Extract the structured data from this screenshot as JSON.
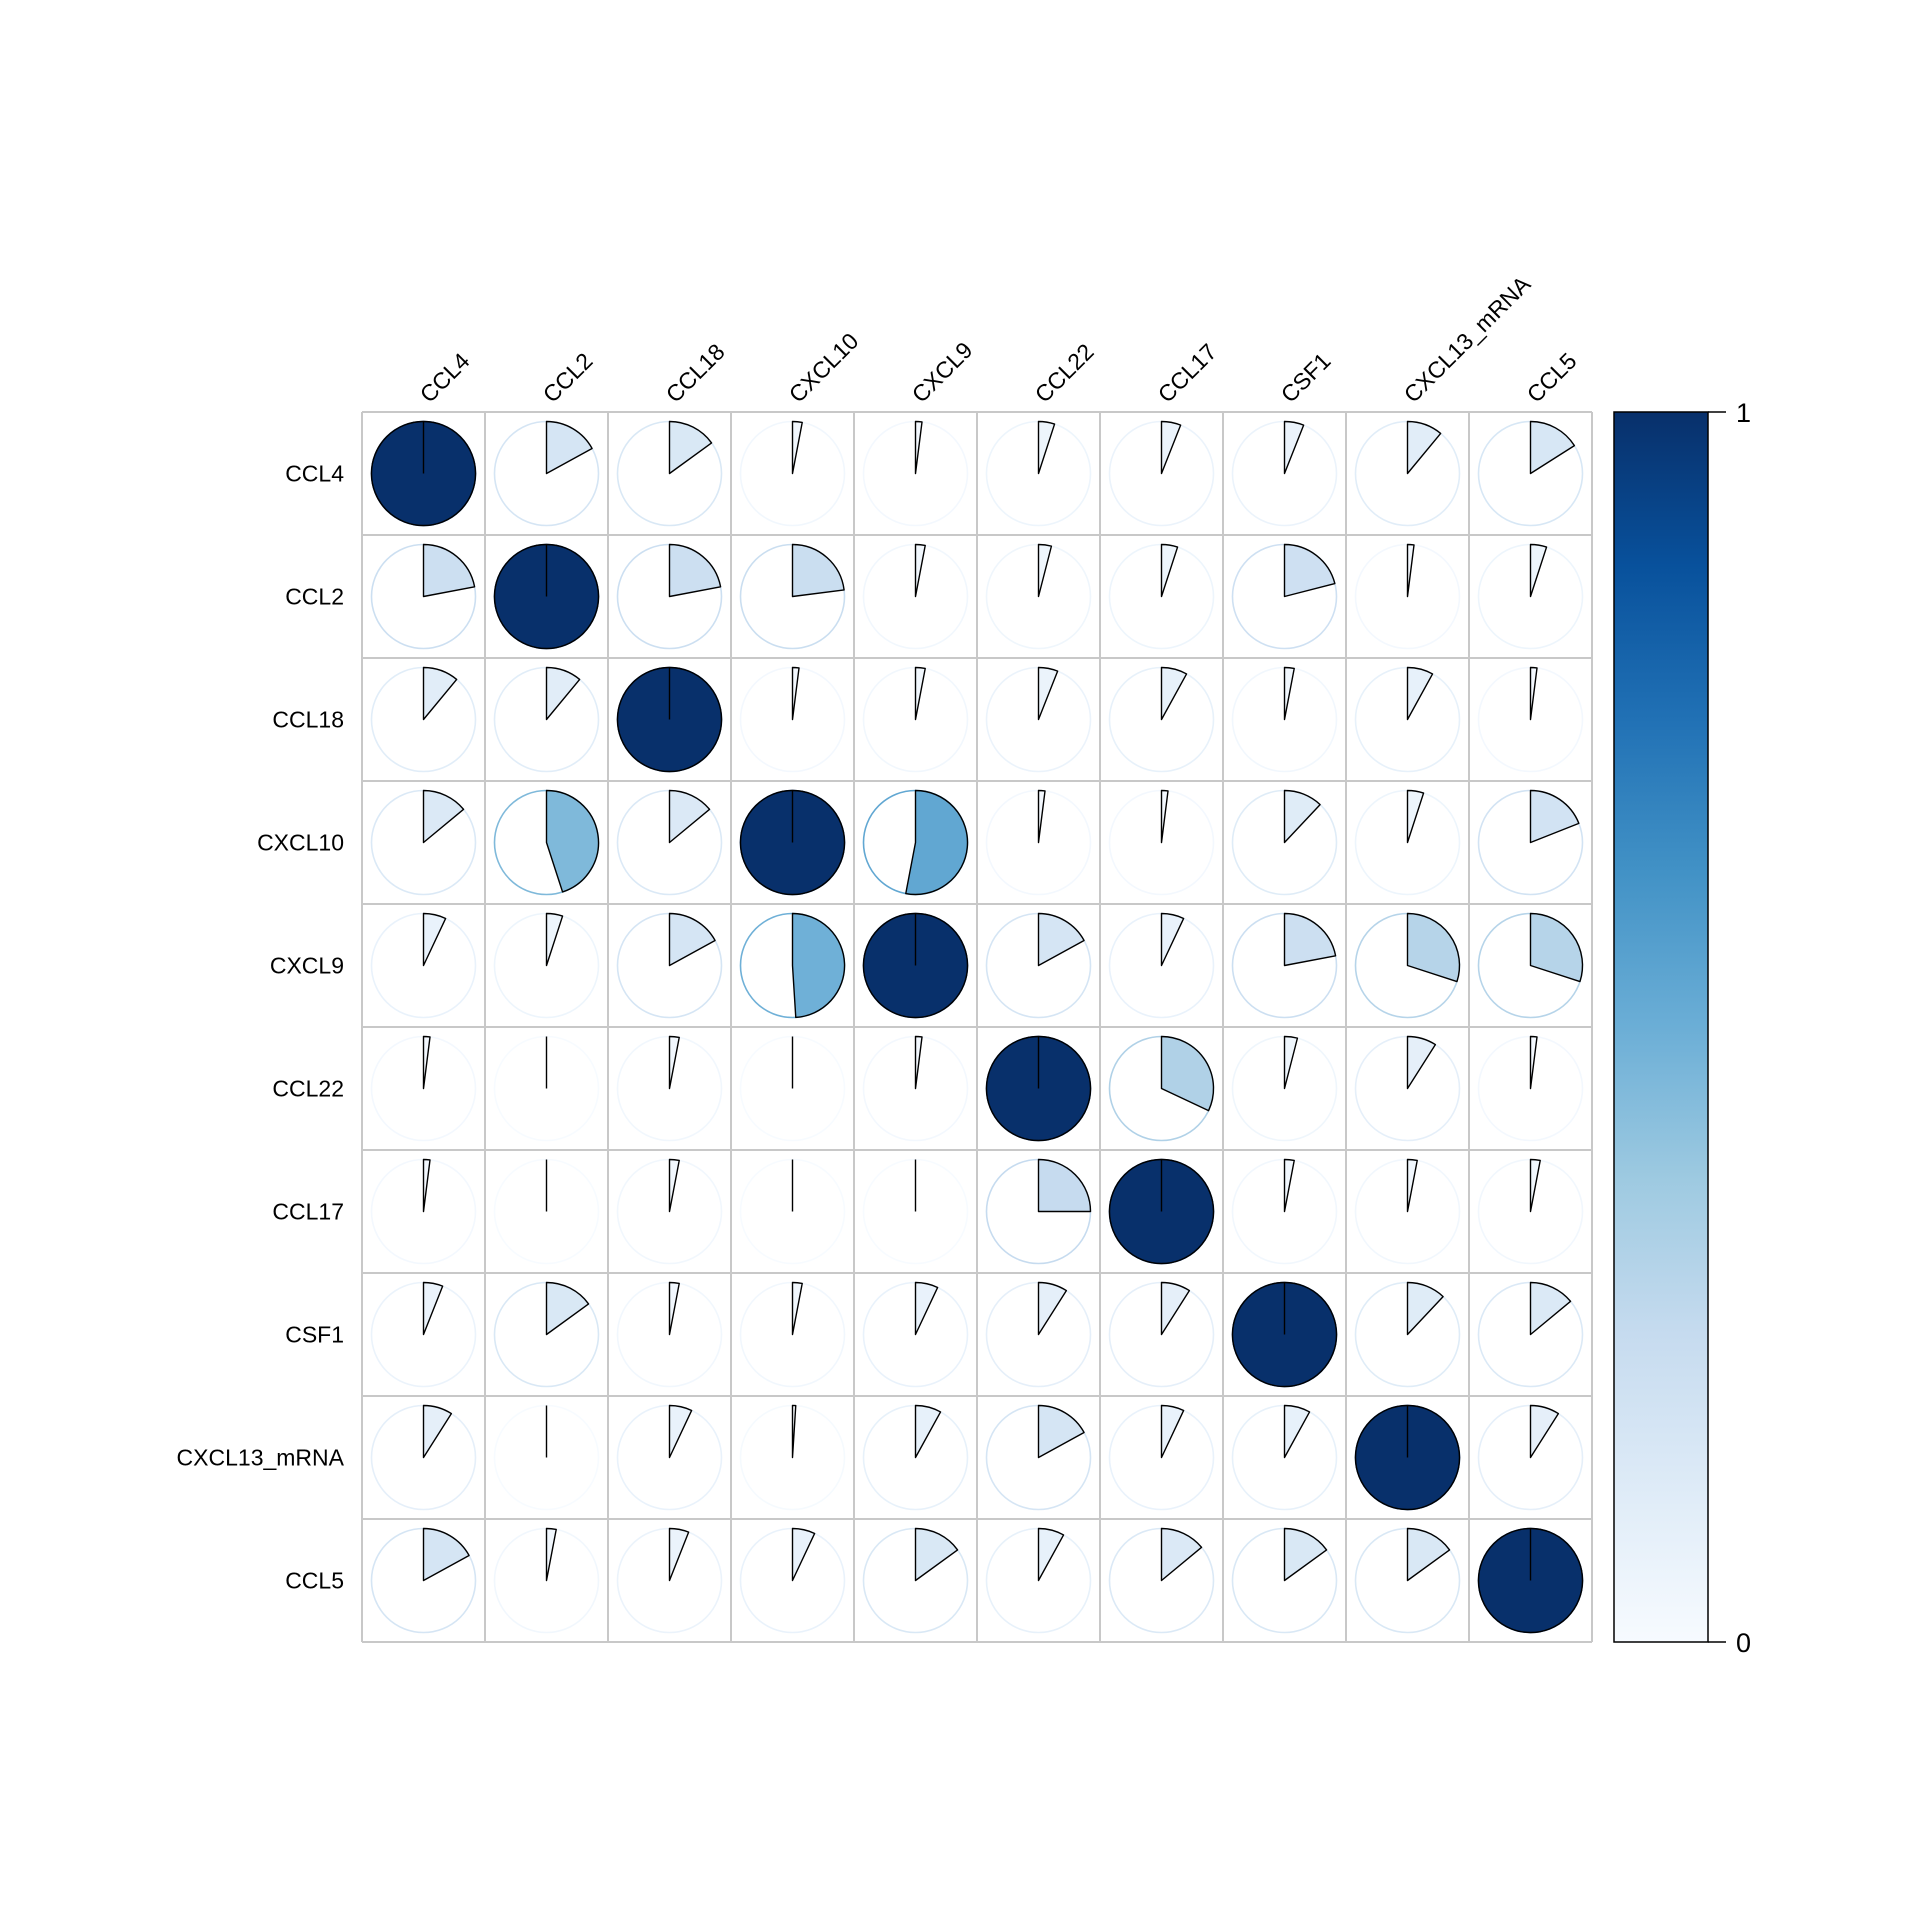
{
  "chart_data": {
    "type": "heatmap",
    "glyph": "pie",
    "variables": [
      "CCL4",
      "CCL2",
      "CCL18",
      "CXCL10",
      "CXCL9",
      "CCL22",
      "CCL17",
      "CSF1",
      "CXCL13_mRNA",
      "CCL5"
    ],
    "values": [
      [
        1.0,
        0.17,
        0.15,
        0.03,
        0.02,
        0.05,
        0.06,
        0.06,
        0.11,
        0.16
      ],
      [
        0.22,
        1.0,
        0.22,
        0.23,
        0.03,
        0.04,
        0.05,
        0.21,
        0.02,
        0.05
      ],
      [
        0.11,
        0.11,
        1.0,
        0.02,
        0.03,
        0.06,
        0.08,
        0.03,
        0.08,
        0.02
      ],
      [
        0.14,
        0.45,
        0.14,
        1.0,
        0.53,
        0.02,
        0.02,
        0.12,
        0.05,
        0.19
      ],
      [
        0.07,
        0.05,
        0.17,
        0.49,
        1.0,
        0.17,
        0.07,
        0.22,
        0.3,
        0.3
      ],
      [
        0.02,
        0.0,
        0.03,
        0.0,
        0.02,
        1.0,
        0.32,
        0.04,
        0.09,
        0.02
      ],
      [
        0.02,
        0.0,
        0.03,
        0.0,
        0.0,
        0.25,
        1.0,
        0.03,
        0.03,
        0.03
      ],
      [
        0.06,
        0.15,
        0.03,
        0.03,
        0.07,
        0.09,
        0.09,
        1.0,
        0.12,
        0.14
      ],
      [
        0.09,
        0.0,
        0.07,
        0.01,
        0.08,
        0.17,
        0.07,
        0.08,
        1.0,
        0.09
      ],
      [
        0.17,
        0.03,
        0.06,
        0.07,
        0.15,
        0.08,
        0.14,
        0.15,
        0.15,
        1.0
      ]
    ],
    "color_scale": {
      "min": 0,
      "max": 1,
      "tick_labels": [
        "1",
        "0"
      ],
      "stops": [
        "#F7FBFF",
        "#DEEBF7",
        "#C6DBEF",
        "#9ECAE1",
        "#6BAED6",
        "#4292C6",
        "#2171B5",
        "#08519C",
        "#08306B"
      ]
    },
    "grid": true,
    "legend": "right"
  }
}
